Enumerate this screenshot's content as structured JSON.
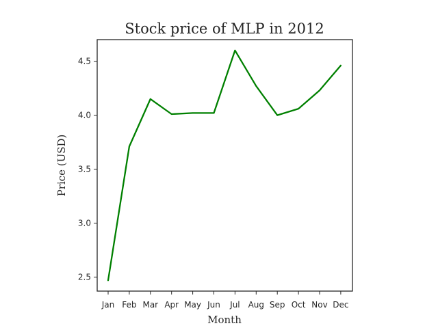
{
  "chart_data": {
    "type": "line",
    "title": "Stock price of MLP in 2012",
    "xlabel": "Month",
    "ylabel": "Price (USD)",
    "categories": [
      "Jan",
      "Feb",
      "Mar",
      "Apr",
      "May",
      "Jun",
      "Jul",
      "Aug",
      "Sep",
      "Oct",
      "Nov",
      "Dec"
    ],
    "series": [
      {
        "values": [
          2.47,
          3.71,
          4.15,
          4.01,
          4.02,
          4.02,
          4.6,
          4.27,
          4.0,
          4.06,
          4.23,
          4.46
        ],
        "color": "#008000"
      }
    ],
    "yticks": [
      "2.5",
      "3.0",
      "3.5",
      "4.0",
      "4.5"
    ],
    "ylim": [
      2.37,
      4.7
    ],
    "grid": false,
    "legend": "none"
  }
}
